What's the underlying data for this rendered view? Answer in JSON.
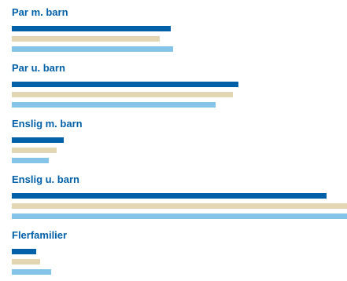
{
  "chart_data": {
    "type": "bar",
    "orientation": "horizontal",
    "categories": [
      "Par m. barn",
      "Par u. barn",
      "Enslig m. barn",
      "Enslig u. barn",
      "Flerfamilier"
    ],
    "series": [
      {
        "color": "#0060a8",
        "values": [
          202,
          288,
          66,
          400,
          31
        ]
      },
      {
        "color": "#e2d7b2",
        "values": [
          188,
          281,
          57,
          426,
          36
        ]
      },
      {
        "color": "#84c4e8",
        "values": [
          205,
          259,
          47,
          426,
          50
        ]
      }
    ],
    "xlim": [
      0,
      426
    ],
    "title": "",
    "xlabel": "",
    "ylabel": "",
    "grid": false,
    "legend": "none",
    "colors": {
      "label": "#0060a8"
    }
  }
}
